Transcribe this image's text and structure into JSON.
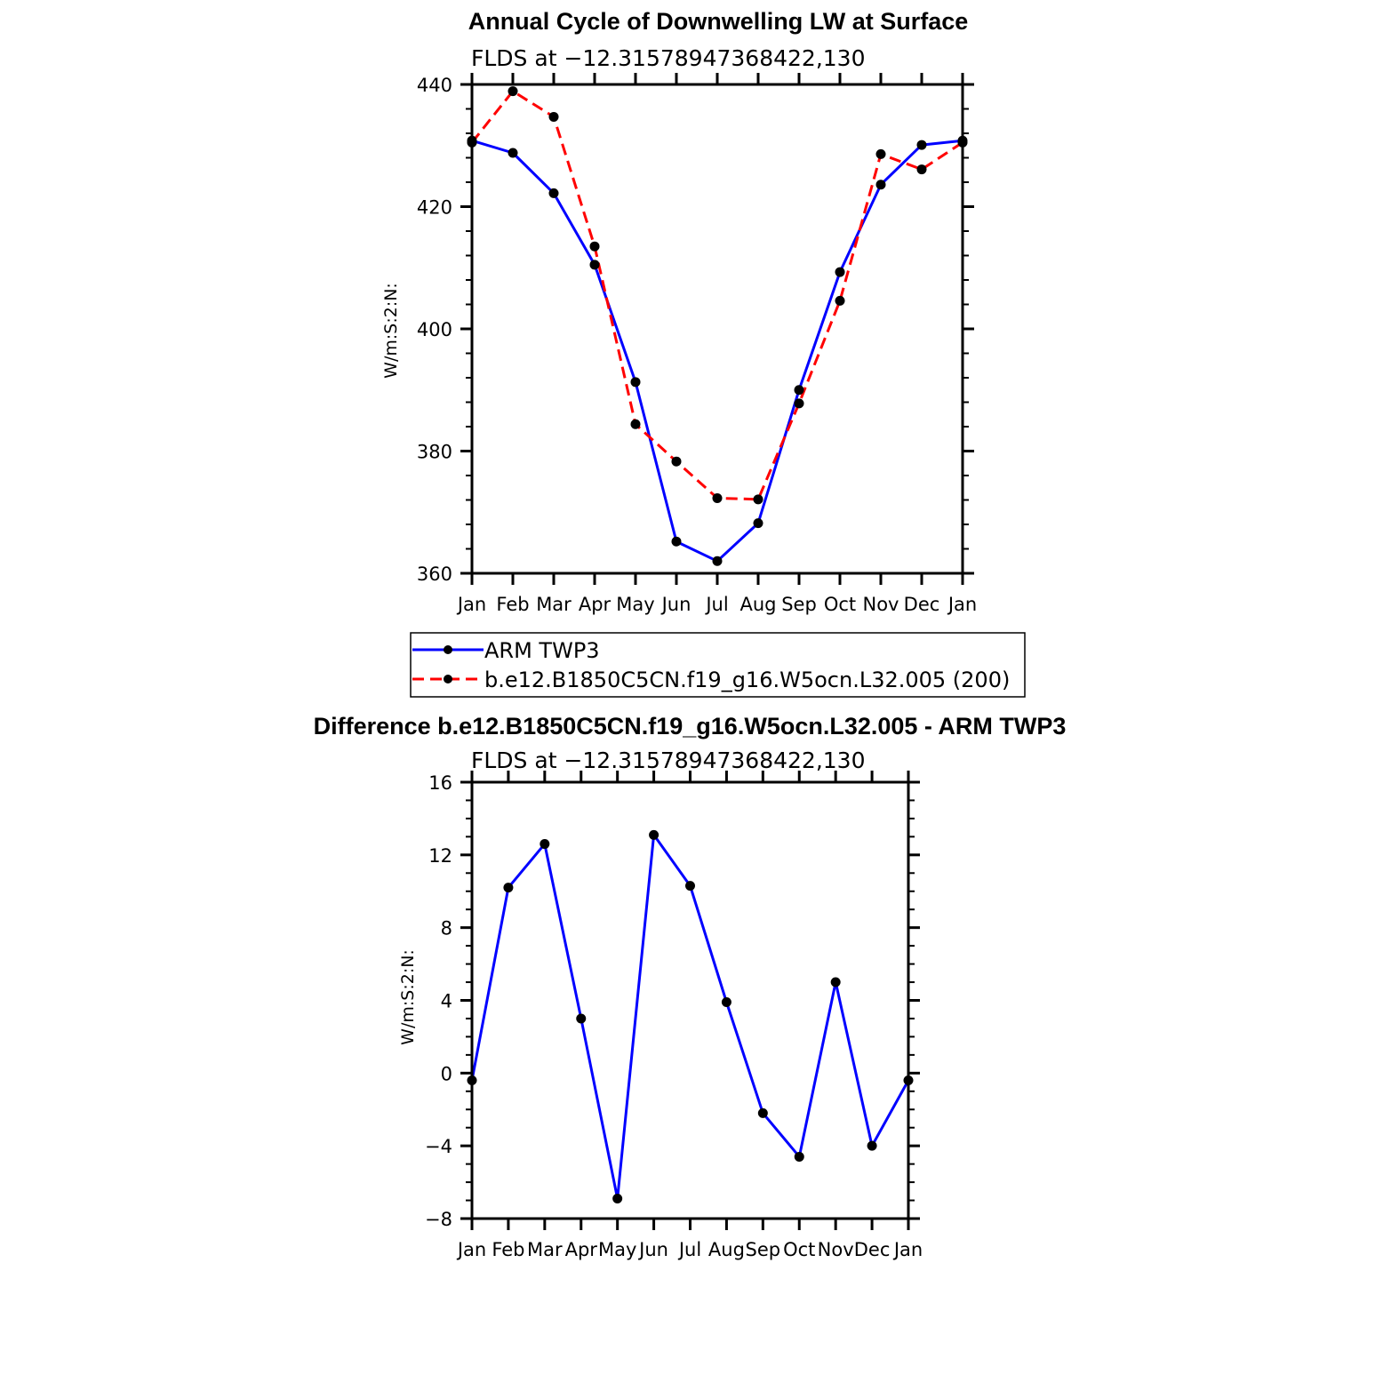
{
  "chart_data": [
    {
      "type": "line",
      "title": "Annual Cycle of Downwelling LW at Surface",
      "subtitle": "FLDS at −12.31578947368422,130",
      "ylabel": "W/m:S:2:N:",
      "xlabel": "",
      "categories": [
        "Jan",
        "Feb",
        "Mar",
        "Apr",
        "May",
        "Jun",
        "Jul",
        "Aug",
        "Sep",
        "Oct",
        "Nov",
        "Dec",
        "Jan"
      ],
      "ylim": [
        360,
        440
      ],
      "yticks": [
        "360",
        "380",
        "400",
        "420",
        "440"
      ],
      "grid": false,
      "legend_position": "bottom",
      "series": [
        {
          "name": "ARM TWP3",
          "color": "#0000ff",
          "dashed": false,
          "values": [
            430.8,
            428.8,
            422.2,
            410.5,
            391.3,
            365.2,
            362.0,
            368.2,
            390.0,
            409.3,
            423.6,
            430.1,
            430.8
          ]
        },
        {
          "name": "b.e12.B1850C5CN.f19_g16.W5ocn.L32.005 (200)",
          "color": "#ff0000",
          "dashed": true,
          "values": [
            430.5,
            438.9,
            434.7,
            413.5,
            384.4,
            378.3,
            372.3,
            372.1,
            387.8,
            404.6,
            428.6,
            426.1,
            430.5
          ]
        }
      ]
    },
    {
      "type": "line",
      "title": "Difference b.e12.B1850C5CN.f19_g16.W5ocn.L32.005 - ARM TWP3",
      "subtitle": "FLDS at −12.31578947368422,130",
      "ylabel": "W/m:S:2:N:",
      "xlabel": "",
      "categories": [
        "Jan",
        "Feb",
        "Mar",
        "Apr",
        "May",
        "Jun",
        "Jul",
        "Aug",
        "Sep",
        "Oct",
        "Nov",
        "Dec",
        "Jan"
      ],
      "ylim": [
        -8,
        16
      ],
      "yticks": [
        "−8",
        "−4",
        "0",
        "4",
        "8",
        "12",
        "16"
      ],
      "grid": false,
      "series": [
        {
          "color": "#0000ff",
          "dashed": false,
          "values": [
            -0.4,
            10.2,
            12.6,
            3.0,
            -6.9,
            13.1,
            10.3,
            3.9,
            -2.2,
            -4.6,
            5.0,
            -4.0,
            -0.4
          ]
        }
      ]
    }
  ]
}
